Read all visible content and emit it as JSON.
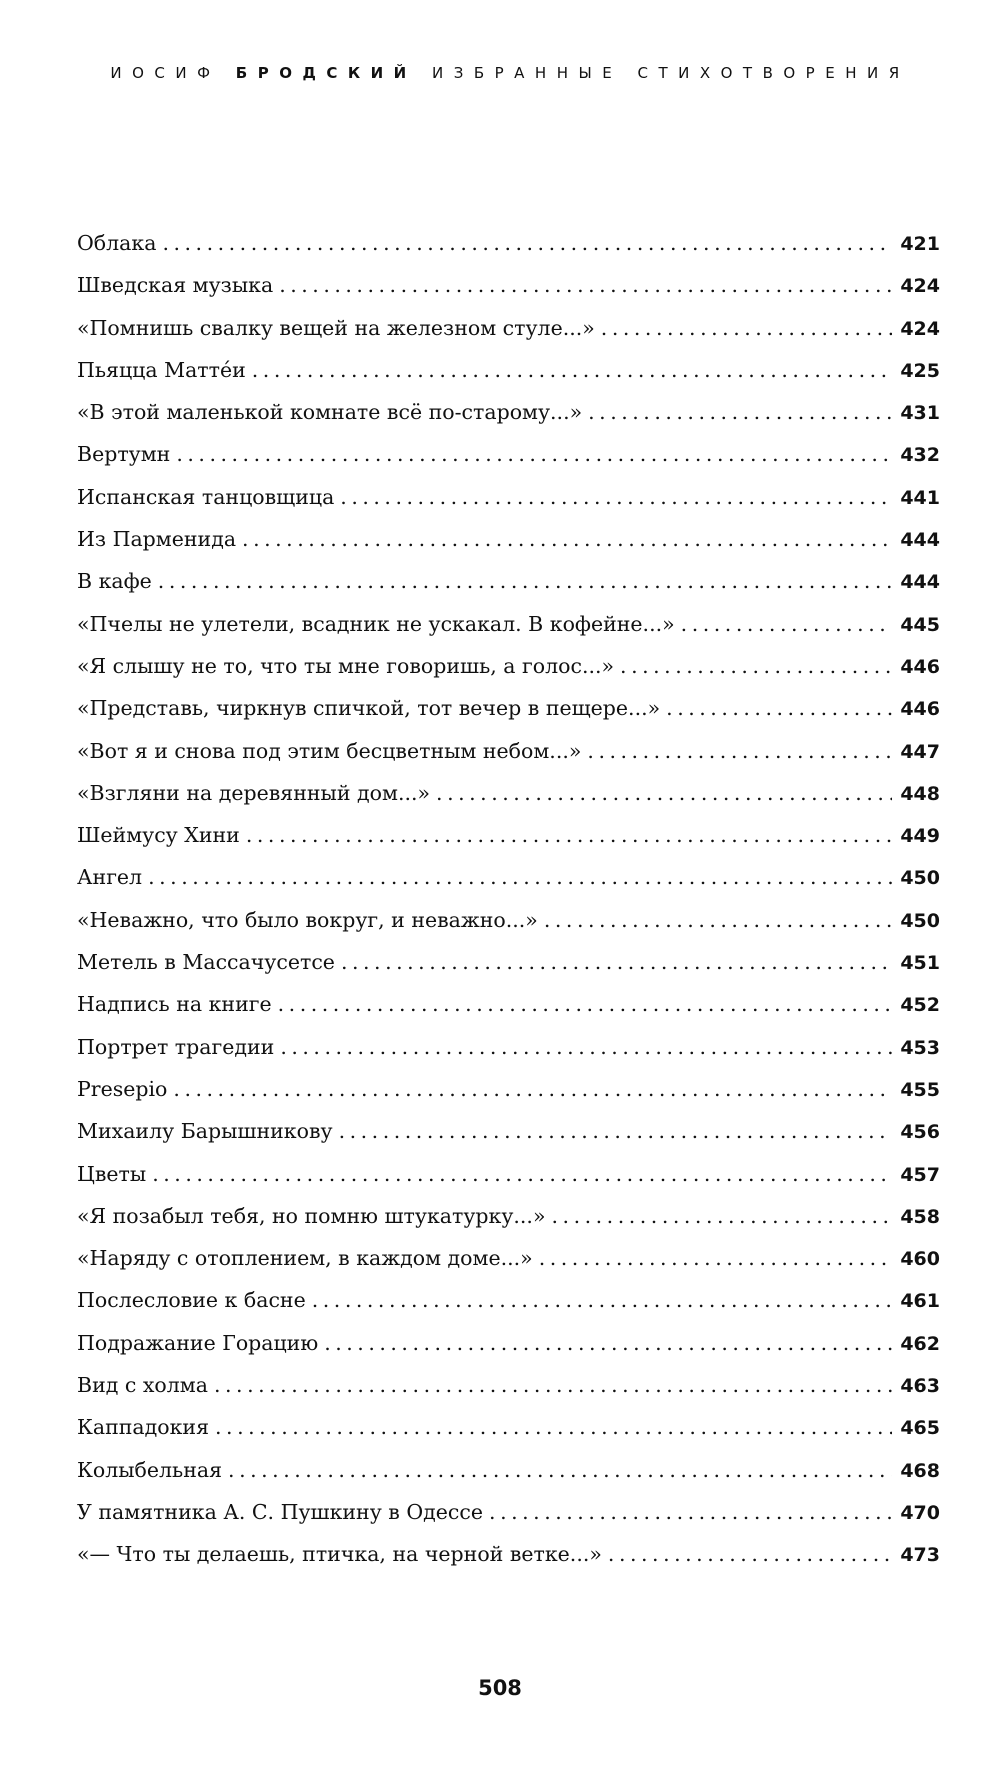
{
  "header": {
    "first": "ИОСИФ",
    "surname": "БРОДСКИЙ",
    "rest": "ИЗБРАННЫЕ СТИХОТВОРЕНИЯ"
  },
  "toc": [
    {
      "title": "Облака",
      "page": "421"
    },
    {
      "title": "Шведская музыка",
      "page": "424"
    },
    {
      "title": "«Помнишь свалку вещей на железном стуле...»",
      "page": "424"
    },
    {
      "title": "Пьяцца Маттéи",
      "page": "425"
    },
    {
      "title": "«В этой маленькой комнате всё по-старому...»",
      "page": "431"
    },
    {
      "title": "Вертумн",
      "page": "432"
    },
    {
      "title": "Испанская танцовщица",
      "page": "441"
    },
    {
      "title": "Из Парменида",
      "page": "444"
    },
    {
      "title": "В кафе",
      "page": "444"
    },
    {
      "title": "«Пчелы не улетели, всадник не ускакал. В кофейне...»",
      "page": "445"
    },
    {
      "title": "«Я слышу не то, что ты мне говоришь, а голос...»",
      "page": "446"
    },
    {
      "title": "«Представь, чиркнув спичкой, тот вечер в пещере...»",
      "page": "446"
    },
    {
      "title": "«Вот я и снова под этим бесцветным небом...»",
      "page": "447"
    },
    {
      "title": "«Взгляни на деревянный дом...»",
      "page": "448"
    },
    {
      "title": "Шеймусу Хини",
      "page": "449"
    },
    {
      "title": "Ангел",
      "page": "450"
    },
    {
      "title": "«Неважно, что было вокруг, и неважно...»",
      "page": "450"
    },
    {
      "title": "Метель в Массачусетсе",
      "page": "451"
    },
    {
      "title": "Надпись на книге",
      "page": "452"
    },
    {
      "title": "Портрет трагедии",
      "page": "453"
    },
    {
      "title": "Presepio",
      "page": "455"
    },
    {
      "title": "Михаилу Барышникову",
      "page": "456"
    },
    {
      "title": "Цветы",
      "page": "457"
    },
    {
      "title": "«Я позабыл тебя, но помню штукатурку...»",
      "page": "458"
    },
    {
      "title": "«Наряду с отоплением, в каждом доме...»",
      "page": "460"
    },
    {
      "title": "Послесловие к басне",
      "page": "461"
    },
    {
      "title": "Подражание Горацию",
      "page": "462"
    },
    {
      "title": "Вид с холма",
      "page": "463"
    },
    {
      "title": "Каппадокия",
      "page": "465"
    },
    {
      "title": "Колыбельная",
      "page": "468"
    },
    {
      "title": "У памятника А. С. Пушкину в Одессе",
      "page": "470"
    },
    {
      "title": "«— Что ты делаешь, птичка, на черной ветке...»",
      "page": "473"
    }
  ],
  "folio": "508"
}
